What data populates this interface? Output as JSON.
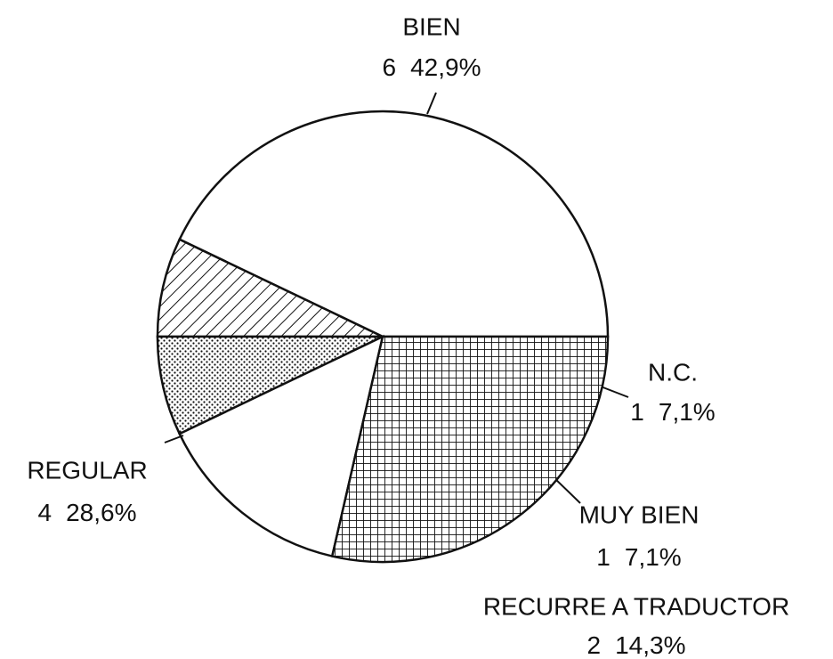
{
  "chart_data": {
    "type": "pie",
    "categories": [
      "BIEN",
      "N.C.",
      "MUY BIEN",
      "RECURRE A TRADUCTOR",
      "REGULAR"
    ],
    "values": [
      6,
      1,
      1,
      2,
      4
    ],
    "percents": [
      42.9,
      7.1,
      7.1,
      14.3,
      28.6
    ],
    "percent_labels": [
      "42,9%",
      "7,1%",
      "7,1%",
      "14,3%",
      "28,6%"
    ],
    "patterns": [
      "white",
      "hatch",
      "dots",
      "white",
      "grid"
    ]
  }
}
